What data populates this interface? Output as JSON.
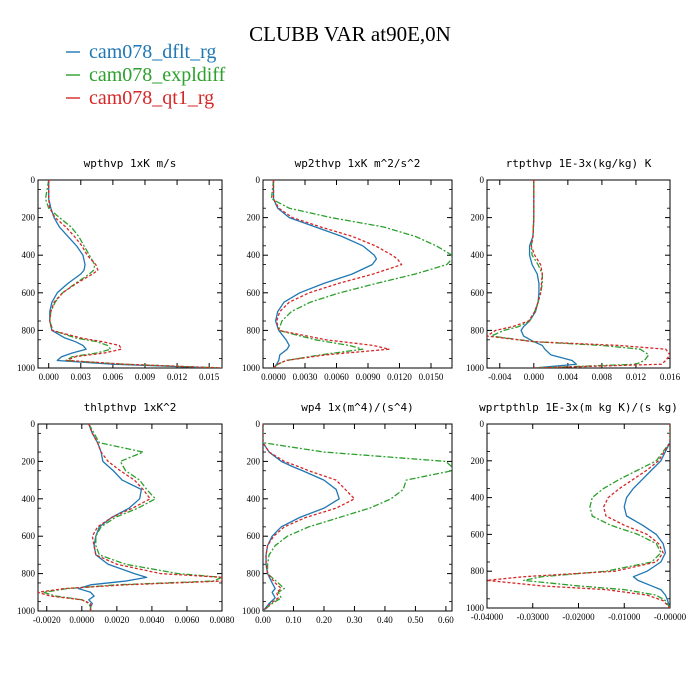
{
  "title": "CLUBB VAR at90E,0N",
  "legend": [
    {
      "name": "cam078_dflt_rg",
      "color": "#1f77b4",
      "dash": ""
    },
    {
      "name": "cam078_expldiff",
      "color": "#2ca02c",
      "dash": "6,2,2,2"
    },
    {
      "name": "cam078_qt1_rg",
      "color": "#d62728",
      "dash": "3,2"
    }
  ],
  "chart_data": [
    {
      "type": "line",
      "title": "wpthvp  1xK m/s",
      "xlim": [
        -0.001,
        0.0162
      ],
      "ylim": [
        0,
        1000
      ],
      "xticks": [
        0.0,
        0.003,
        0.006,
        0.009,
        0.012,
        0.015
      ],
      "xticklabels": [
        "0.000",
        "0.003",
        "0.006",
        "0.009",
        "0.012",
        "0.015"
      ],
      "yticks": [
        0,
        200,
        400,
        600,
        800,
        1000
      ],
      "y": [
        0,
        100,
        150,
        200,
        250,
        300,
        350,
        400,
        450,
        480,
        500,
        550,
        600,
        650,
        700,
        750,
        800,
        840,
        860,
        880,
        900,
        920,
        940,
        960,
        980,
        1000
      ],
      "series": [
        {
          "name": "cam078_dflt_rg",
          "values": [
            0.0,
            0.0,
            0.0002,
            0.0005,
            0.001,
            0.0018,
            0.0026,
            0.0032,
            0.0034,
            0.0033,
            0.003,
            0.0018,
            0.0008,
            0.0003,
            0.0001,
            0.0001,
            0.0003,
            0.0015,
            0.0025,
            0.0032,
            0.0035,
            0.0022,
            0.0012,
            0.0008,
            0.006,
            0.0158
          ]
        },
        {
          "name": "cam078_expldiff",
          "values": [
            0.0,
            -0.0003,
            0.0,
            0.001,
            0.0021,
            0.0028,
            0.0033,
            0.0038,
            0.0043,
            0.0042,
            0.0038,
            0.0025,
            0.0013,
            0.0006,
            0.0002,
            0.0001,
            0.0004,
            0.0025,
            0.0045,
            0.0055,
            0.0058,
            0.0045,
            0.0022,
            0.0016,
            0.007,
            0.0162
          ]
        },
        {
          "name": "cam078_qt1_rg",
          "values": [
            0.0,
            0.0,
            0.0001,
            0.0006,
            0.0016,
            0.0024,
            0.0031,
            0.0036,
            0.0044,
            0.0046,
            0.0041,
            0.0026,
            0.0013,
            0.0005,
            0.0002,
            0.0001,
            0.0003,
            0.003,
            0.005,
            0.0066,
            0.0068,
            0.0052,
            0.0025,
            0.0017,
            0.0071,
            0.0162
          ]
        }
      ]
    },
    {
      "type": "line",
      "title": "wp2thvp  1xK m^2/s^2",
      "xlim": [
        -0.001,
        0.017
      ],
      "ylim": [
        0,
        1000
      ],
      "xticks": [
        0.0,
        0.003,
        0.006,
        0.009,
        0.012,
        0.015
      ],
      "xticklabels": [
        "0.0000",
        "0.0030",
        "0.0060",
        "0.0090",
        "0.0120",
        "0.0150"
      ],
      "yticks": [
        0,
        200,
        400,
        600,
        800,
        1000
      ],
      "y": [
        0,
        100,
        150,
        200,
        250,
        300,
        350,
        400,
        420,
        450,
        500,
        550,
        600,
        650,
        700,
        750,
        800,
        850,
        880,
        900,
        930,
        960,
        980,
        1000
      ],
      "series": [
        {
          "name": "cam078_dflt_rg",
          "values": [
            0.0,
            0.0,
            0.0004,
            0.0015,
            0.004,
            0.0065,
            0.0085,
            0.0096,
            0.0098,
            0.0094,
            0.0075,
            0.0048,
            0.0025,
            0.001,
            0.0004,
            0.0002,
            0.0005,
            0.0012,
            0.0015,
            0.0013,
            0.0006,
            0.0005,
            0.0003,
            0.0
          ]
        },
        {
          "name": "cam078_expldiff",
          "values": [
            0.0,
            -0.0002,
            0.0015,
            0.0055,
            0.0105,
            0.0135,
            0.0155,
            0.017,
            0.017,
            0.0165,
            0.0135,
            0.0098,
            0.0063,
            0.0035,
            0.0017,
            0.0008,
            0.0005,
            0.004,
            0.0072,
            0.0085,
            0.0045,
            0.0012,
            0.0004,
            0.0
          ]
        },
        {
          "name": "cam078_qt1_rg",
          "values": [
            0.0,
            0.0,
            0.0005,
            0.0018,
            0.0045,
            0.0075,
            0.0097,
            0.0113,
            0.0118,
            0.0122,
            0.0095,
            0.0062,
            0.0034,
            0.0015,
            0.0006,
            0.0003,
            0.0005,
            0.005,
            0.0095,
            0.011,
            0.005,
            0.0012,
            0.0004,
            0.0
          ]
        }
      ]
    },
    {
      "type": "line",
      "title": "rtpthvp  1E-3x(kg/kg) K",
      "xlim": [
        -0.0055,
        0.016
      ],
      "ylim": [
        0,
        1000
      ],
      "xticks": [
        -0.004,
        0.0,
        0.004,
        0.008,
        0.012,
        0.016
      ],
      "xticklabels": [
        "-0.004",
        "0.000",
        "0.004",
        "0.008",
        "0.012",
        "0.016"
      ],
      "yticks": [
        0,
        200,
        400,
        600,
        800,
        1000
      ],
      "y": [
        0,
        100,
        200,
        300,
        350,
        400,
        450,
        500,
        550,
        600,
        650,
        700,
        750,
        780,
        800,
        830,
        860,
        880,
        900,
        930,
        960,
        980,
        1000
      ],
      "series": [
        {
          "name": "cam078_dflt_rg",
          "values": [
            0.0,
            0.0,
            0.0,
            -0.0001,
            -0.0005,
            -0.0005,
            -0.0002,
            0.0004,
            0.0006,
            0.0006,
            0.0005,
            0.0002,
            -0.0005,
            -0.0012,
            -0.0015,
            -0.0012,
            0.0,
            0.001,
            0.0013,
            0.002,
            0.0045,
            0.005,
            0.0
          ]
        },
        {
          "name": "cam078_expldiff",
          "values": [
            0.0,
            0.0,
            0.0,
            -0.0001,
            -0.0003,
            -0.0002,
            0.0005,
            0.001,
            0.001,
            0.0008,
            0.0005,
            0.0001,
            -0.0005,
            -0.0018,
            -0.0035,
            -0.005,
            0.0,
            0.008,
            0.0125,
            0.0135,
            0.013,
            0.012,
            0.0
          ]
        },
        {
          "name": "cam078_qt1_rg",
          "values": [
            0.0,
            0.0,
            0.0,
            -0.0001,
            -0.0003,
            0.0001,
            0.0008,
            0.001,
            0.0009,
            0.0008,
            0.0005,
            0.0001,
            -0.0006,
            -0.0025,
            -0.0045,
            -0.0055,
            0.0,
            0.01,
            0.0155,
            0.016,
            0.0155,
            0.015,
            0.0
          ]
        }
      ]
    },
    {
      "type": "line",
      "title": "thlpthvp  1xK^2",
      "xlim": [
        -0.0025,
        0.008
      ],
      "ylim": [
        0,
        1000
      ],
      "xticks": [
        -0.002,
        0.0,
        0.002,
        0.004,
        0.006,
        0.008
      ],
      "xticklabels": [
        "-0.0020",
        "0.0000",
        "0.0020",
        "0.0040",
        "0.0060",
        "0.0080"
      ],
      "yticks": [
        0,
        200,
        400,
        600,
        800,
        1000
      ],
      "y": [
        0,
        50,
        100,
        150,
        200,
        250,
        300,
        350,
        400,
        450,
        500,
        550,
        600,
        650,
        700,
        750,
        800,
        820,
        840,
        860,
        880,
        900,
        920,
        940,
        960,
        980,
        1000
      ],
      "series": [
        {
          "name": "cam078_dflt_rg",
          "values": [
            0.0004,
            0.0006,
            0.0009,
            0.0011,
            0.0012,
            0.0018,
            0.0023,
            0.0034,
            0.0033,
            0.0027,
            0.0017,
            0.001,
            0.0008,
            0.0007,
            0.0008,
            0.0015,
            0.003,
            0.0037,
            0.0025,
            0.0005,
            -0.0002,
            0.0005,
            0.0007,
            0.0004,
            0.0006,
            0.0005,
            0.0005
          ]
        },
        {
          "name": "cam078_expldiff",
          "values": [
            0.0004,
            0.0007,
            0.001,
            0.0035,
            0.0022,
            0.0025,
            0.0033,
            0.0037,
            0.0042,
            0.0032,
            0.0019,
            0.0011,
            0.0008,
            0.0008,
            0.001,
            0.0025,
            0.0055,
            0.008,
            0.0075,
            0.002,
            -0.0008,
            -0.0022,
            -0.0015,
            0.0,
            0.0004,
            0.0005,
            0.0005
          ]
        },
        {
          "name": "cam078_qt1_rg",
          "values": [
            0.0004,
            0.0006,
            0.0009,
            0.0011,
            0.0015,
            0.0022,
            0.003,
            0.0035,
            0.0039,
            0.0029,
            0.0017,
            0.0009,
            0.0006,
            0.0007,
            0.0008,
            0.002,
            0.0045,
            0.008,
            0.008,
            0.0025,
            -0.001,
            -0.0025,
            -0.0018,
            0.0,
            0.0005,
            0.0005,
            0.0005
          ]
        }
      ]
    },
    {
      "type": "line",
      "title": "wp4  1x(m^4)/(s^4)",
      "xlim": [
        0.0,
        0.62
      ],
      "ylim": [
        0,
        1000
      ],
      "xticks": [
        0.0,
        0.1,
        0.2,
        0.3,
        0.4,
        0.5,
        0.6
      ],
      "xticklabels": [
        "0.00",
        "0.10",
        "0.20",
        "0.30",
        "0.40",
        "0.50",
        "0.60"
      ],
      "yticks": [
        0,
        200,
        400,
        600,
        800,
        1000
      ],
      "y": [
        0,
        100,
        150,
        200,
        230,
        250,
        300,
        350,
        400,
        450,
        500,
        550,
        600,
        650,
        700,
        750,
        800,
        850,
        880,
        900,
        930,
        960,
        1000
      ],
      "series": [
        {
          "name": "cam078_dflt_rg",
          "values": [
            0.0,
            0.0,
            0.02,
            0.06,
            0.1,
            0.13,
            0.2,
            0.24,
            0.25,
            0.2,
            0.12,
            0.06,
            0.03,
            0.015,
            0.01,
            0.01,
            0.015,
            0.03,
            0.04,
            0.03,
            0.04,
            0.02,
            0.0
          ]
        },
        {
          "name": "cam078_expldiff",
          "values": [
            0.0,
            0.0,
            0.2,
            0.6,
            0.62,
            0.62,
            0.47,
            0.46,
            0.42,
            0.35,
            0.25,
            0.15,
            0.08,
            0.04,
            0.02,
            0.015,
            0.015,
            0.05,
            0.07,
            0.05,
            0.06,
            0.03,
            0.0
          ]
        },
        {
          "name": "cam078_qt1_rg",
          "values": [
            0.0,
            0.0,
            0.02,
            0.07,
            0.12,
            0.15,
            0.24,
            0.27,
            0.3,
            0.24,
            0.14,
            0.07,
            0.035,
            0.015,
            0.01,
            0.01,
            0.015,
            0.04,
            0.06,
            0.045,
            0.05,
            0.025,
            0.0
          ]
        }
      ]
    },
    {
      "type": "line",
      "title": "wprtpthlp  1E-3x(m kg K)/(s kg)",
      "xlim": [
        -0.04,
        0.0
      ],
      "ylim": [
        0,
        1000
      ],
      "xticks": [
        -0.04,
        -0.03,
        -0.02,
        -0.01,
        0.0
      ],
      "xticklabels": [
        "-0.04000",
        "-0.03000",
        "-0.02000",
        "-0.01000",
        "-0.00000"
      ],
      "yticks": [
        0,
        200,
        400,
        600,
        800,
        1000
      ],
      "y": [
        0,
        100,
        200,
        250,
        300,
        350,
        400,
        450,
        500,
        550,
        600,
        650,
        700,
        750,
        800,
        830,
        850,
        880,
        900,
        930,
        960,
        1000
      ],
      "series": [
        {
          "name": "cam078_dflt_rg",
          "values": [
            0.0,
            0.0,
            -0.002,
            -0.004,
            -0.006,
            -0.008,
            -0.0095,
            -0.01,
            -0.0095,
            -0.006,
            -0.003,
            -0.0015,
            -0.001,
            -0.002,
            -0.005,
            -0.008,
            -0.007,
            -0.004,
            -0.002,
            -0.001,
            -0.0005,
            0.0
          ]
        },
        {
          "name": "cam078_expldiff",
          "values": [
            0.0,
            0.0,
            -0.003,
            -0.007,
            -0.011,
            -0.0145,
            -0.017,
            -0.0175,
            -0.017,
            -0.013,
            -0.007,
            -0.003,
            -0.002,
            -0.004,
            -0.014,
            -0.028,
            -0.032,
            -0.02,
            -0.01,
            -0.003,
            -0.001,
            0.0
          ]
        },
        {
          "name": "cam078_qt1_rg",
          "values": [
            0.0,
            0.0,
            -0.0025,
            -0.005,
            -0.008,
            -0.011,
            -0.0135,
            -0.0145,
            -0.014,
            -0.01,
            -0.005,
            -0.0025,
            -0.0015,
            -0.003,
            -0.012,
            -0.032,
            -0.04,
            -0.028,
            -0.014,
            -0.005,
            -0.0015,
            0.0
          ]
        }
      ]
    }
  ]
}
